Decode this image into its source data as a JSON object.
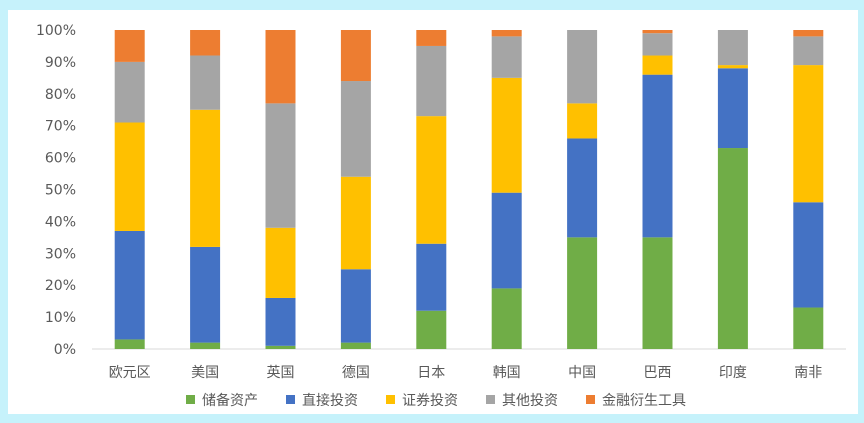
{
  "chart_data": {
    "type": "bar",
    "stacked": true,
    "percent": true,
    "categories": [
      "欧元区",
      "美国",
      "英国",
      "德国",
      "日本",
      "韩国",
      "中国",
      "巴西",
      "印度",
      "南非"
    ],
    "series": [
      {
        "name": "储备资产",
        "color": "#70ad47",
        "values": [
          3,
          2,
          1,
          2,
          12,
          19,
          35,
          35,
          63,
          13
        ]
      },
      {
        "name": "直接投资",
        "color": "#4472c4",
        "values": [
          34,
          30,
          15,
          23,
          21,
          30,
          31,
          51,
          25,
          33
        ]
      },
      {
        "name": "证券投资",
        "color": "#ffc000",
        "values": [
          34,
          43,
          22,
          29,
          40,
          36,
          11,
          6,
          1,
          43
        ]
      },
      {
        "name": "其他投资",
        "color": "#a5a5a5",
        "values": [
          19,
          17,
          39,
          30,
          22,
          13,
          23,
          7,
          11,
          9
        ]
      },
      {
        "name": "金融衍生工具",
        "color": "#ed7d31",
        "values": [
          10,
          8,
          23,
          16,
          5,
          2,
          0,
          1,
          0,
          2
        ]
      }
    ],
    "y_ticks": [
      "0%",
      "10%",
      "20%",
      "30%",
      "40%",
      "50%",
      "60%",
      "70%",
      "80%",
      "90%",
      "100%"
    ],
    "ylim": [
      0,
      100
    ],
    "grid": false,
    "legend_position": "bottom"
  }
}
